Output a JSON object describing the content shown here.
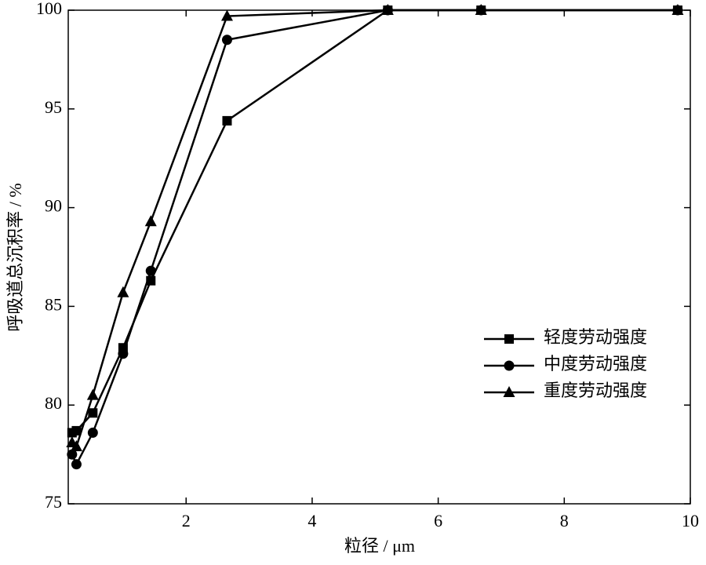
{
  "chart_data": {
    "type": "line",
    "x_label": "粒径 / μm",
    "y_label": "呼吸道总沉积率 / %",
    "x": [
      0.19,
      0.26,
      0.52,
      1.0,
      1.44,
      2.65,
      5.2,
      6.68,
      9.8
    ],
    "series": [
      {
        "name": "轻度劳动强度",
        "color": "#000000",
        "marker": "square",
        "values": [
          78.6,
          78.7,
          79.6,
          82.9,
          86.3,
          94.4,
          100,
          100,
          100
        ]
      },
      {
        "name": "中度劳动强度",
        "color": "#000000",
        "marker": "circle",
        "values": [
          77.5,
          77.0,
          78.6,
          82.6,
          86.8,
          98.5,
          100,
          100,
          100
        ]
      },
      {
        "name": "重度劳动强度",
        "color": "#000000",
        "marker": "triangle",
        "values": [
          78.1,
          77.9,
          80.5,
          85.7,
          89.3,
          99.7,
          100,
          100,
          100
        ]
      }
    ],
    "xlim": [
      0.13,
      10
    ],
    "ylim": [
      75,
      100
    ],
    "xticks": [
      2,
      4,
      6,
      8,
      10
    ],
    "yticks": [
      75,
      80,
      85,
      90,
      95,
      100
    ],
    "legend": "right"
  }
}
